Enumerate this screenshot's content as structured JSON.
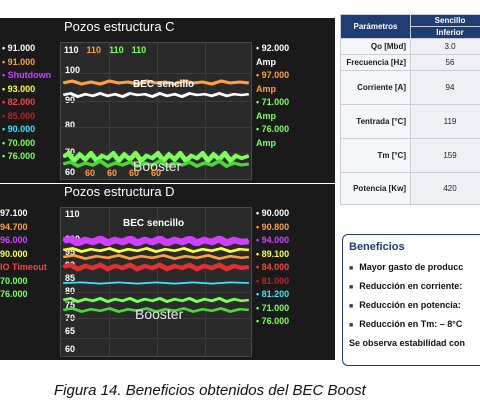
{
  "panel_c": {
    "title": "Pozos estructura C",
    "top_ticks": [
      {
        "text": "110",
        "color": "#ffffff"
      },
      {
        "text": "110",
        "color": "#ffa040"
      },
      {
        "text": "110",
        "color": "#7dff5a"
      },
      {
        "text": "110",
        "color": "#7dff5a"
      }
    ],
    "y_ticks": [
      "100",
      "90",
      "80",
      "70"
    ],
    "bottom_ticks": [
      "60",
      "60",
      "60",
      "60"
    ],
    "bottom_left_tick": "60",
    "label_top": "BEC sencillo",
    "label_bottom": "Booster",
    "legend_left": [
      {
        "text": "• 91.000",
        "color": "#ffffff"
      },
      {
        "text": "• 91.000",
        "color": "#ffa040"
      },
      {
        "text": "• Shutdown",
        "color": "#d040ff"
      },
      {
        "text": "• 93.000",
        "color": "#ffff40"
      },
      {
        "text": "• 82.000",
        "color": "#ff4040"
      },
      {
        "text": "• 85.000",
        "color": "#c02020"
      },
      {
        "text": "• 90.000",
        "color": "#40e0ff"
      },
      {
        "text": "• 70.000",
        "color": "#7dff5a"
      },
      {
        "text": "• 76.000",
        "color": "#7dff5a"
      }
    ],
    "legend_right": [
      {
        "text": "• 92.000",
        "color": "#ffffff"
      },
      {
        "text": "Amp",
        "color": "#ffffff"
      },
      {
        "text": "• 97.000",
        "color": "#ffa040"
      },
      {
        "text": "Amp",
        "color": "#ffa040"
      },
      {
        "text": "• 71.000",
        "color": "#7dff5a"
      },
      {
        "text": "Amp",
        "color": "#7dff5a"
      },
      {
        "text": "• 76.000",
        "color": "#7dff5a"
      },
      {
        "text": "Amp",
        "color": "#7dff5a"
      }
    ]
  },
  "panel_d": {
    "title": "Pozos estructura D",
    "y_ticks": [
      "110",
      "100",
      "95",
      "90",
      "85",
      "80",
      "75",
      "70",
      "65",
      "60"
    ],
    "label_top": "BEC sencillo",
    "label_bottom": "Booster",
    "legend_left": [
      {
        "text": "97.100",
        "color": "#ffffff"
      },
      {
        "text": "94.700",
        "color": "#ffa040"
      },
      {
        "text": "96.000",
        "color": "#d040ff"
      },
      {
        "text": "90.000",
        "color": "#ffff40"
      },
      {
        "text": "IO Timeout",
        "color": "#ff4040"
      },
      {
        "text": "70.000",
        "color": "#7dff5a"
      },
      {
        "text": "76.000",
        "color": "#7dff5a"
      }
    ],
    "legend_right": [
      {
        "text": "• 90.000",
        "color": "#ffffff"
      },
      {
        "text": "• 90.800",
        "color": "#ffa040"
      },
      {
        "text": "• 94.000",
        "color": "#d040ff"
      },
      {
        "text": "• 89.100",
        "color": "#ffff40"
      },
      {
        "text": "• 84.000",
        "color": "#ff4040"
      },
      {
        "text": "• 81.000",
        "color": "#c02020"
      },
      {
        "text": "• 81.200",
        "color": "#40e0ff"
      },
      {
        "text": "• 71.000",
        "color": "#7dff5a"
      },
      {
        "text": "• 76.000",
        "color": "#7dff5a"
      }
    ]
  },
  "table": {
    "header_param": "Parámetros",
    "header_group": "Sencillo",
    "header_sub": "Inferior",
    "rows": [
      {
        "label": "Qo [Mbd]",
        "value": "3.0"
      },
      {
        "label": "Frecuencia [Hz]",
        "value": "56"
      },
      {
        "label": "Corriente [A]",
        "value": "94"
      },
      {
        "label": "Tentrada [°C]",
        "value": "119"
      },
      {
        "label": "Tm [°C]",
        "value": "159"
      },
      {
        "label": "Potencia [Kw]",
        "value": "420"
      }
    ]
  },
  "benefits": {
    "title": "Beneficios",
    "items": [
      "Mayor gasto de producc",
      "Reducción en corriente:",
      "Reducción en potencia:",
      "Reducción en Tm:  – 8°C"
    ],
    "note": "Se observa estabilidad con"
  },
  "caption": "Figura 14. Beneficios obtenidos  del  BEC Boost"
}
